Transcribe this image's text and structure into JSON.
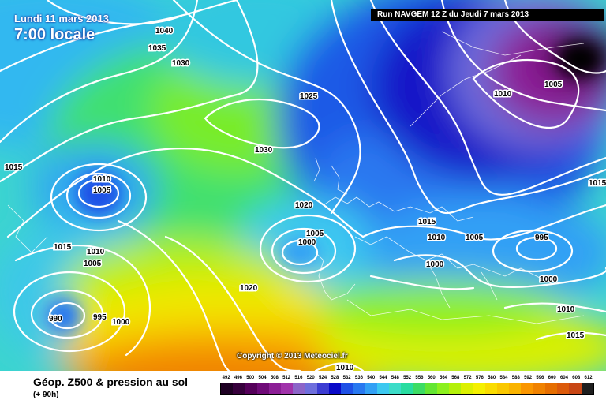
{
  "header": {
    "date": "Lundi 11 mars 2013",
    "time": "7:00 locale",
    "run": "Run NAVGEM 12 Z du Jeudi 7 mars 2013"
  },
  "copyright": "Copyright © 2013 Meteociel.fr",
  "footer": {
    "title": "Géop. Z500 & pression au sol",
    "subtitle": "(+ 90h)"
  },
  "legend": {
    "values": [
      "492",
      "496",
      "500",
      "504",
      "508",
      "512",
      "516",
      "520",
      "524",
      "528",
      "532",
      "536",
      "540",
      "544",
      "548",
      "552",
      "556",
      "560",
      "564",
      "568",
      "572",
      "576",
      "580",
      "584",
      "588",
      "592",
      "596",
      "600",
      "604",
      "608",
      "612"
    ],
    "colors": [
      "#1e0023",
      "#37003c",
      "#55005a",
      "#6f0a78",
      "#8c1e96",
      "#a032aa",
      "#8c64c8",
      "#6e6edc",
      "#3c3cd2",
      "#0a0ac8",
      "#1e50e6",
      "#2878f0",
      "#32a0f5",
      "#3cc8f0",
      "#3cdcc8",
      "#28dca0",
      "#3cdc64",
      "#64e632",
      "#8cf01e",
      "#b4f00a",
      "#dcf000",
      "#f5f000",
      "#fadc00",
      "#fac800",
      "#fab400",
      "#fa9600",
      "#f08200",
      "#e66e00",
      "#dc5a0a",
      "#c84614",
      "#1e1e1e"
    ]
  },
  "map": {
    "isobar_labels": [
      {
        "text": "1040"
      },
      {
        "text": "1035"
      },
      {
        "text": "1030"
      },
      {
        "text": "1025"
      },
      {
        "text": "1030"
      },
      {
        "text": "1015"
      },
      {
        "text": "1010"
      },
      {
        "text": "1005"
      },
      {
        "text": "1020"
      },
      {
        "text": "1015"
      },
      {
        "text": "1010"
      },
      {
        "text": "1005"
      },
      {
        "text": "990"
      },
      {
        "text": "995"
      },
      {
        "text": "1000"
      },
      {
        "text": "1020"
      },
      {
        "text": "1005"
      },
      {
        "text": "1000"
      },
      {
        "text": "1015"
      },
      {
        "text": "1010"
      },
      {
        "text": "1005"
      },
      {
        "text": "1000"
      },
      {
        "text": "995"
      },
      {
        "text": "1000"
      },
      {
        "text": "1010"
      },
      {
        "text": "1005"
      },
      {
        "text": "1015"
      },
      {
        "text": "1010"
      },
      {
        "text": "1015"
      },
      {
        "text": "1010"
      }
    ]
  }
}
